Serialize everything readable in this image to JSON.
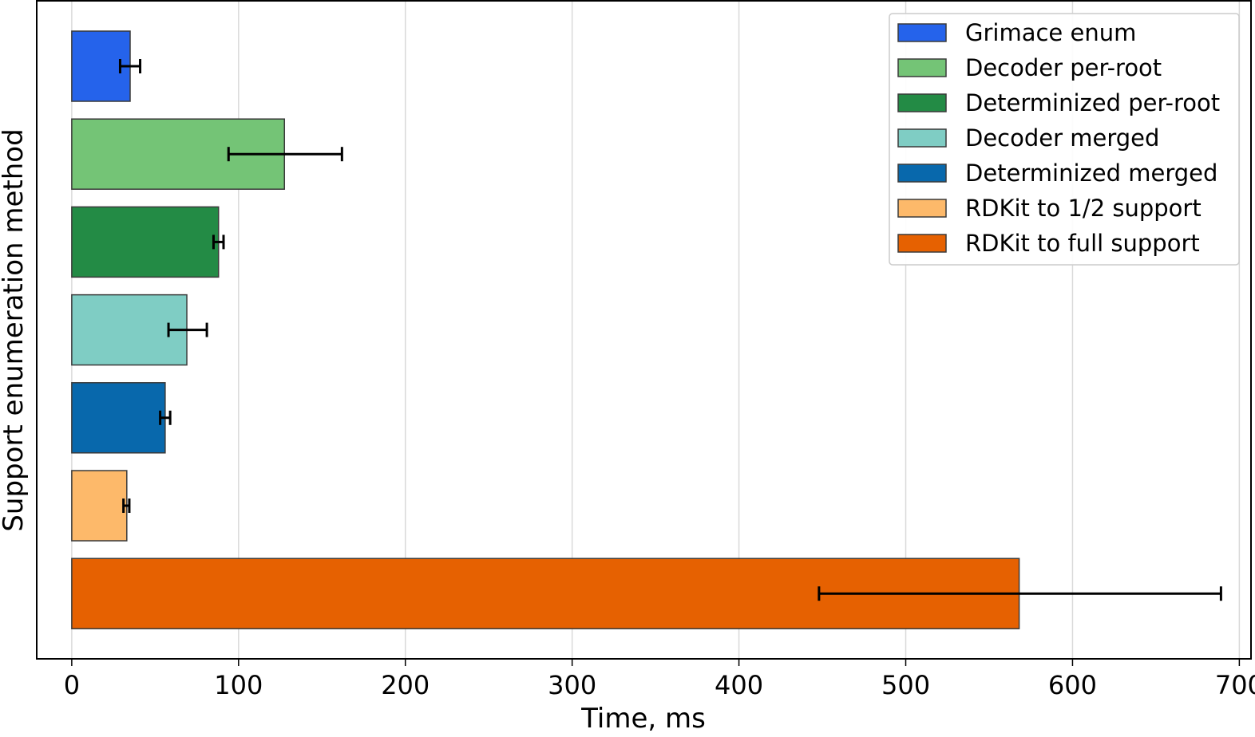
{
  "chart_data": {
    "type": "bar",
    "orientation": "horizontal",
    "xlabel": "Time, ms",
    "ylabel": "Support enumeration method",
    "xlim": [
      -21,
      707
    ],
    "xticks": [
      0,
      100,
      200,
      300,
      400,
      500,
      600,
      700
    ],
    "grid": "vertical",
    "legend_position": "top-right",
    "series": [
      {
        "name": "Grimace enum",
        "value": 35,
        "error": [
          29,
          41
        ],
        "color": "#2563eb"
      },
      {
        "name": "Decoder per-root",
        "value": 127.5,
        "error": [
          94,
          162
        ],
        "color": "#74c476"
      },
      {
        "name": "Determinized per-root",
        "value": 88,
        "error": [
          85,
          91
        ],
        "color": "#238b45"
      },
      {
        "name": "Decoder merged",
        "value": 69,
        "error": [
          58,
          81
        ],
        "color": "#7fcdc4"
      },
      {
        "name": "Determinized merged",
        "value": 56,
        "error": [
          53,
          59
        ],
        "color": "#0868ac"
      },
      {
        "name": "RDKit to 1/2 support",
        "value": 33,
        "error": [
          31,
          34.5
        ],
        "color": "#fdb96a"
      },
      {
        "name": "RDKit to full support",
        "value": 568,
        "error": [
          448,
          689
        ],
        "color": "#e66101"
      }
    ]
  }
}
